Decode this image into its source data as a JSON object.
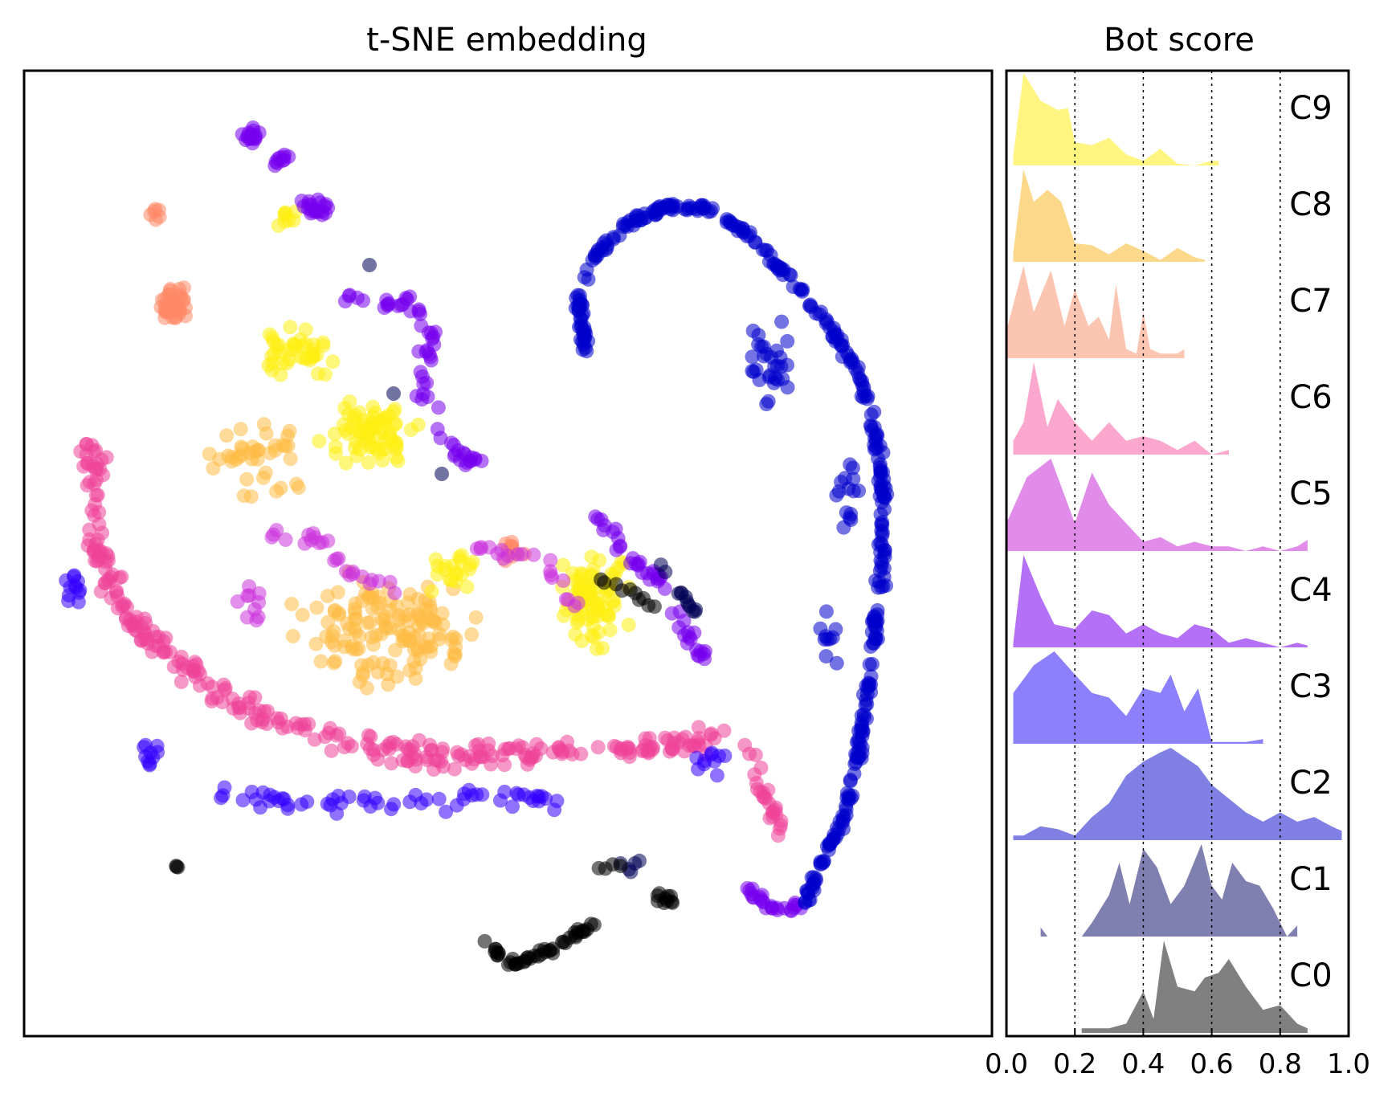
{
  "chart_data": [
    {
      "type": "scatter",
      "title": "t-SNE embedding",
      "xlabel": "",
      "ylabel": "",
      "axes": "hidden",
      "series": [
        {
          "cluster": "C0",
          "color": "#000000"
        },
        {
          "cluster": "C1",
          "color": "#000055"
        },
        {
          "cluster": "C2",
          "color": "#0000cc"
        },
        {
          "cluster": "C3",
          "color": "#3300ff"
        },
        {
          "cluster": "C4",
          "color": "#7700ee"
        },
        {
          "cluster": "C5",
          "color": "#cc33dd"
        },
        {
          "cluster": "C6",
          "color": "#ee4499"
        },
        {
          "cluster": "C7",
          "color": "#ff8866"
        },
        {
          "cluster": "C8",
          "color": "#ffbb44"
        },
        {
          "cluster": "C9",
          "color": "#ffee11"
        }
      ]
    },
    {
      "type": "area",
      "title": "Bot score",
      "xlabel": "",
      "ylabel": "",
      "xlim": [
        0.0,
        1.0
      ],
      "xticks": [
        "0.0",
        "0.2",
        "0.4",
        "0.6",
        "0.8",
        "1.0"
      ],
      "grid": "vertical dotted lines at 0.2, 0.4, 0.6, 0.8",
      "series": [
        {
          "name": "C9",
          "color": "#fff580",
          "points": [
            [
              0.02,
              0.1
            ],
            [
              0.05,
              1.0
            ],
            [
              0.1,
              0.7
            ],
            [
              0.15,
              0.6
            ],
            [
              0.18,
              0.62
            ],
            [
              0.2,
              0.25
            ],
            [
              0.25,
              0.22
            ],
            [
              0.3,
              0.3
            ],
            [
              0.35,
              0.12
            ],
            [
              0.4,
              0.05
            ],
            [
              0.45,
              0.18
            ],
            [
              0.5,
              0.02
            ],
            [
              0.55,
              0.0
            ],
            [
              0.6,
              0.05
            ],
            [
              0.62,
              0.05
            ]
          ]
        },
        {
          "name": "C8",
          "color": "#fcd98a",
          "points": [
            [
              0.02,
              0.1
            ],
            [
              0.05,
              1.0
            ],
            [
              0.08,
              0.65
            ],
            [
              0.12,
              0.78
            ],
            [
              0.16,
              0.65
            ],
            [
              0.2,
              0.2
            ],
            [
              0.25,
              0.18
            ],
            [
              0.3,
              0.08
            ],
            [
              0.35,
              0.2
            ],
            [
              0.4,
              0.12
            ],
            [
              0.45,
              0.02
            ],
            [
              0.5,
              0.15
            ],
            [
              0.55,
              0.05
            ],
            [
              0.58,
              0.02
            ]
          ]
        },
        {
          "name": "C7",
          "color": "#fcc5b2",
          "points": [
            [
              0.0,
              0.3
            ],
            [
              0.05,
              1.0
            ],
            [
              0.08,
              0.5
            ],
            [
              0.13,
              0.95
            ],
            [
              0.17,
              0.35
            ],
            [
              0.2,
              0.75
            ],
            [
              0.24,
              0.35
            ],
            [
              0.27,
              0.45
            ],
            [
              0.3,
              0.2
            ],
            [
              0.32,
              0.8
            ],
            [
              0.35,
              0.1
            ],
            [
              0.38,
              0.05
            ],
            [
              0.4,
              0.5
            ],
            [
              0.42,
              0.1
            ],
            [
              0.45,
              0.05
            ],
            [
              0.5,
              0.05
            ],
            [
              0.52,
              0.1
            ]
          ]
        },
        {
          "name": "C6",
          "color": "#fca7ce",
          "points": [
            [
              0.02,
              0.15
            ],
            [
              0.05,
              0.35
            ],
            [
              0.08,
              1.0
            ],
            [
              0.12,
              0.3
            ],
            [
              0.15,
              0.6
            ],
            [
              0.2,
              0.35
            ],
            [
              0.25,
              0.15
            ],
            [
              0.3,
              0.35
            ],
            [
              0.35,
              0.15
            ],
            [
              0.4,
              0.2
            ],
            [
              0.45,
              0.15
            ],
            [
              0.5,
              0.05
            ],
            [
              0.55,
              0.15
            ],
            [
              0.6,
              0.0
            ],
            [
              0.65,
              0.05
            ]
          ]
        },
        {
          "name": "C5",
          "color": "#e08ce8",
          "points": [
            [
              0.0,
              0.3
            ],
            [
              0.06,
              0.8
            ],
            [
              0.13,
              1.0
            ],
            [
              0.2,
              0.3
            ],
            [
              0.25,
              0.85
            ],
            [
              0.3,
              0.5
            ],
            [
              0.35,
              0.3
            ],
            [
              0.4,
              0.1
            ],
            [
              0.45,
              0.15
            ],
            [
              0.5,
              0.05
            ],
            [
              0.55,
              0.1
            ],
            [
              0.6,
              0.05
            ],
            [
              0.65,
              0.05
            ],
            [
              0.7,
              0.0
            ],
            [
              0.75,
              0.05
            ],
            [
              0.8,
              0.0
            ],
            [
              0.85,
              0.05
            ],
            [
              0.88,
              0.12
            ]
          ]
        },
        {
          "name": "C4",
          "color": "#b470f6",
          "points": [
            [
              0.02,
              0.05
            ],
            [
              0.05,
              1.0
            ],
            [
              0.1,
              0.55
            ],
            [
              0.14,
              0.25
            ],
            [
              0.2,
              0.2
            ],
            [
              0.25,
              0.4
            ],
            [
              0.3,
              0.35
            ],
            [
              0.35,
              0.15
            ],
            [
              0.4,
              0.25
            ],
            [
              0.45,
              0.15
            ],
            [
              0.5,
              0.1
            ],
            [
              0.55,
              0.25
            ],
            [
              0.6,
              0.2
            ],
            [
              0.65,
              0.05
            ],
            [
              0.7,
              0.1
            ],
            [
              0.75,
              0.05
            ],
            [
              0.8,
              0.0
            ],
            [
              0.85,
              0.05
            ],
            [
              0.88,
              0.02
            ]
          ]
        },
        {
          "name": "C3",
          "color": "#8c80fc",
          "points": [
            [
              0.02,
              0.55
            ],
            [
              0.08,
              0.85
            ],
            [
              0.14,
              1.0
            ],
            [
              0.2,
              0.75
            ],
            [
              0.25,
              0.55
            ],
            [
              0.3,
              0.5
            ],
            [
              0.35,
              0.3
            ],
            [
              0.4,
              0.6
            ],
            [
              0.45,
              0.55
            ],
            [
              0.48,
              0.75
            ],
            [
              0.52,
              0.35
            ],
            [
              0.56,
              0.6
            ],
            [
              0.6,
              0.02
            ],
            [
              0.65,
              0.02
            ],
            [
              0.7,
              0.02
            ],
            [
              0.75,
              0.05
            ]
          ]
        },
        {
          "name": "C2",
          "color": "#8080e4",
          "points": [
            [
              0.02,
              0.05
            ],
            [
              0.05,
              0.05
            ],
            [
              0.1,
              0.15
            ],
            [
              0.15,
              0.12
            ],
            [
              0.2,
              0.05
            ],
            [
              0.25,
              0.25
            ],
            [
              0.3,
              0.4
            ],
            [
              0.35,
              0.7
            ],
            [
              0.4,
              0.85
            ],
            [
              0.45,
              0.95
            ],
            [
              0.48,
              1.0
            ],
            [
              0.52,
              0.9
            ],
            [
              0.56,
              0.8
            ],
            [
              0.6,
              0.6
            ],
            [
              0.65,
              0.45
            ],
            [
              0.7,
              0.3
            ],
            [
              0.75,
              0.2
            ],
            [
              0.8,
              0.3
            ],
            [
              0.85,
              0.2
            ],
            [
              0.9,
              0.25
            ],
            [
              0.95,
              0.15
            ],
            [
              0.98,
              0.1
            ]
          ]
        },
        {
          "name": "C1",
          "color": "#8080b0",
          "points": [
            [
              0.1,
              0.1
            ],
            [
              0.12,
              0.0
            ],
            [
              0.22,
              0.0
            ],
            [
              0.25,
              0.15
            ],
            [
              0.3,
              0.45
            ],
            [
              0.33,
              0.8
            ],
            [
              0.36,
              0.35
            ],
            [
              0.4,
              0.95
            ],
            [
              0.44,
              0.75
            ],
            [
              0.48,
              0.35
            ],
            [
              0.52,
              0.55
            ],
            [
              0.57,
              1.0
            ],
            [
              0.6,
              0.55
            ],
            [
              0.63,
              0.4
            ],
            [
              0.66,
              0.8
            ],
            [
              0.7,
              0.6
            ],
            [
              0.74,
              0.55
            ],
            [
              0.78,
              0.3
            ],
            [
              0.82,
              0.0
            ],
            [
              0.85,
              0.12
            ]
          ]
        },
        {
          "name": "C0",
          "color": "#808080",
          "points": [
            [
              0.22,
              0.05
            ],
            [
              0.25,
              0.05
            ],
            [
              0.3,
              0.05
            ],
            [
              0.35,
              0.1
            ],
            [
              0.4,
              0.45
            ],
            [
              0.43,
              0.15
            ],
            [
              0.46,
              1.0
            ],
            [
              0.5,
              0.5
            ],
            [
              0.55,
              0.45
            ],
            [
              0.58,
              0.6
            ],
            [
              0.62,
              0.65
            ],
            [
              0.65,
              0.8
            ],
            [
              0.7,
              0.5
            ],
            [
              0.75,
              0.25
            ],
            [
              0.8,
              0.3
            ],
            [
              0.85,
              0.1
            ],
            [
              0.88,
              0.05
            ]
          ]
        }
      ],
      "legend": "labels C0–C9 at right edge of each ridge"
    }
  ]
}
